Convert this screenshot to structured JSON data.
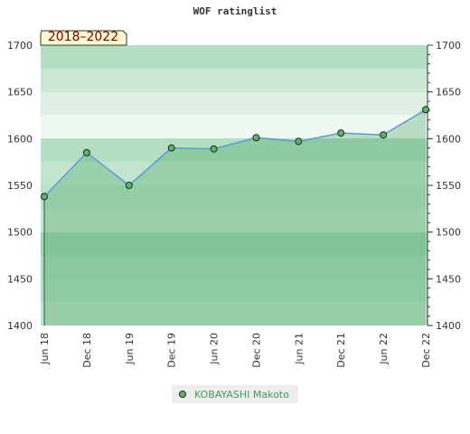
{
  "chart_data": {
    "type": "line",
    "title": "WOF ratinglist",
    "badge": "2018–2022",
    "categories": [
      "Jun 18",
      "Dec 18",
      "Jun 19",
      "Dec 19",
      "Jun 20",
      "Dec 20",
      "Jun 21",
      "Dec 21",
      "Jun 22",
      "Dec 22"
    ],
    "series": [
      {
        "name": "KOBAYASHI Makoto",
        "color": "#5b9bd5",
        "marker_color": "#5fb36f",
        "values": [
          1538,
          1585,
          1550,
          1590,
          1589,
          1601,
          1597,
          1606,
          1604,
          1631
        ]
      }
    ],
    "ylim": [
      1400,
      1700
    ],
    "yticks": [
      1400,
      1450,
      1500,
      1550,
      1600,
      1650,
      1700
    ],
    "y2lim": [
      1400,
      1700
    ],
    "y2ticks": [
      1400,
      1450,
      1500,
      1550,
      1600,
      1650,
      1700
    ]
  }
}
